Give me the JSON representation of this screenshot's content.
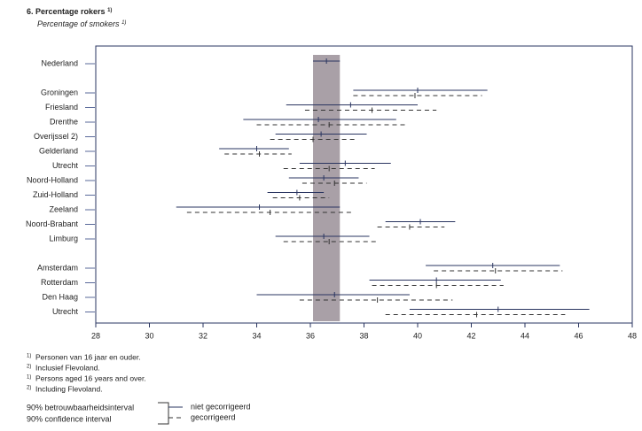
{
  "chart_data": {
    "type": "interval",
    "title": "6.  Percentage rokers",
    "title_note": "1)",
    "subtitle": "Percentage of smokers",
    "subtitle_note": "1)",
    "categories": [
      "Nederland",
      null,
      "Groningen",
      "Friesland",
      "Drenthe",
      "Overijssel 2)",
      "Gelderland",
      "Utrecht",
      "Noord-Holland",
      "Zuid-Holland",
      "Zeeland",
      "Noord-Brabant",
      "Limburg",
      null,
      "Amsterdam",
      "Rotterdam",
      "Den Haag",
      "Utrecht"
    ],
    "series": [
      {
        "name": "niet gecorrigeerd",
        "color": "#2a3560",
        "dashed": false,
        "low": [
          36.1,
          null,
          37.6,
          35.1,
          33.5,
          34.7,
          32.6,
          35.6,
          35.2,
          34.4,
          31.0,
          38.8,
          34.7,
          null,
          40.3,
          38.2,
          34.0,
          39.7
        ],
        "values": [
          36.6,
          null,
          40.0,
          37.5,
          36.3,
          36.4,
          34.0,
          37.3,
          36.5,
          35.5,
          34.1,
          40.1,
          36.5,
          null,
          42.8,
          40.7,
          36.9,
          43.0
        ],
        "high": [
          37.1,
          null,
          42.6,
          40.0,
          39.2,
          38.1,
          35.2,
          39.0,
          37.8,
          36.5,
          37.1,
          41.4,
          38.2,
          null,
          45.3,
          43.1,
          39.7,
          46.4
        ]
      },
      {
        "name": "gecorrigeerd",
        "color": "#333333",
        "dashed": true,
        "low": [
          null,
          null,
          37.6,
          35.8,
          34.0,
          34.5,
          32.8,
          35.0,
          35.7,
          34.6,
          31.4,
          38.5,
          35.0,
          null,
          40.6,
          38.3,
          35.6,
          38.8
        ],
        "values": [
          null,
          null,
          39.9,
          38.3,
          36.7,
          36.1,
          34.1,
          36.7,
          36.9,
          35.6,
          34.5,
          39.7,
          36.7,
          null,
          42.9,
          40.7,
          38.5,
          42.2
        ],
        "high": [
          null,
          null,
          42.4,
          40.7,
          39.6,
          37.7,
          35.3,
          38.4,
          38.1,
          36.7,
          37.6,
          41.0,
          38.5,
          null,
          45.4,
          43.2,
          41.3,
          45.5
        ]
      }
    ],
    "band": true,
    "band_color": "#9a8f98",
    "xlim": [
      28,
      48
    ],
    "xticks": [
      28,
      30,
      32,
      34,
      36,
      38,
      40,
      42,
      44,
      46,
      48
    ],
    "notes": [
      {
        "mark": "1)",
        "text": "Personen van 16 jaar en ouder."
      },
      {
        "mark": "2)",
        "text": "Inclusief Flevoland."
      },
      {
        "mark": "1)",
        "text": "Persons aged 16 years and over."
      },
      {
        "mark": "2)",
        "text": "Including Flevoland."
      }
    ],
    "legend_caption": [
      "90% betrouwbaarheidsinterval",
      "90% confidence interval"
    ]
  }
}
